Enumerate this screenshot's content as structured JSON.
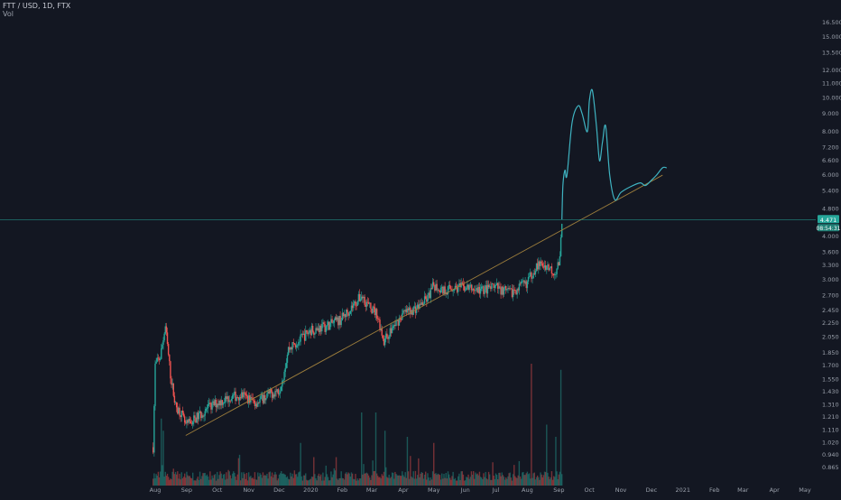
{
  "header": {
    "symbol_title": "FTT / USD, 1D, FTX",
    "volume_label": "Vol"
  },
  "colors": {
    "background": "#131722",
    "up": "#26a69a",
    "down": "#ef5350",
    "projection": "#3fb3c1",
    "trendline": "#9c7d3c",
    "price_line": "#26a69a",
    "axis_text": "#9aa0ab"
  },
  "chart_data": {
    "type": "candlestick",
    "title": "FTT / USD, 1D, FTX",
    "xlabel": "",
    "ylabel": "",
    "y_scale": "log",
    "ylim": [
      0.82,
      18.8
    ],
    "last_price": {
      "value": "4.471",
      "countdown": "08:54:31"
    },
    "y_ticks": [
      "16.500",
      "15.000",
      "13.500",
      "12.000",
      "11.000",
      "10.000",
      "9.000",
      "8.000",
      "7.200",
      "6.600",
      "6.000",
      "5.400",
      "4.800",
      "4.000",
      "3.600",
      "3.300",
      "3.000",
      "2.700",
      "2.450",
      "2.250",
      "2.050",
      "1.850",
      "1.700",
      "1.550",
      "1.430",
      "1.310",
      "1.210",
      "1.110",
      "1.020",
      "0.940",
      "0.865"
    ],
    "x_ticks": [
      {
        "date": "2019-08-01",
        "label": "Aug"
      },
      {
        "date": "2019-09-01",
        "label": "Sep"
      },
      {
        "date": "2019-10-01",
        "label": "Oct"
      },
      {
        "date": "2019-11-01",
        "label": "Nov"
      },
      {
        "date": "2019-12-01",
        "label": "Dec"
      },
      {
        "date": "2020-01-01",
        "label": "2020"
      },
      {
        "date": "2020-02-01",
        "label": "Feb"
      },
      {
        "date": "2020-03-01",
        "label": "Mar"
      },
      {
        "date": "2020-04-01",
        "label": "Apr"
      },
      {
        "date": "2020-05-01",
        "label": "May"
      },
      {
        "date": "2020-06-01",
        "label": "Jun"
      },
      {
        "date": "2020-07-01",
        "label": "Jul"
      },
      {
        "date": "2020-08-01",
        "label": "Aug"
      },
      {
        "date": "2020-09-01",
        "label": "Sep"
      },
      {
        "date": "2020-10-01",
        "label": "Oct"
      },
      {
        "date": "2020-11-01",
        "label": "Nov"
      },
      {
        "date": "2020-12-01",
        "label": "Dec"
      },
      {
        "date": "2021-01-01",
        "label": "2021"
      },
      {
        "date": "2021-02-01",
        "label": "Feb"
      },
      {
        "date": "2021-03-01",
        "label": "Mar"
      },
      {
        "date": "2021-04-01",
        "label": "Apr"
      },
      {
        "date": "2021-05-01",
        "label": "May"
      }
    ],
    "price_path": [
      [
        "2019-07-30",
        0.99
      ],
      [
        "2019-08-01",
        1.7
      ],
      [
        "2019-08-06",
        1.8
      ],
      [
        "2019-08-11",
        2.2
      ],
      [
        "2019-08-16",
        1.6
      ],
      [
        "2019-08-21",
        1.3
      ],
      [
        "2019-08-26",
        1.25
      ],
      [
        "2019-08-31",
        1.14
      ],
      [
        "2019-09-10",
        1.2
      ],
      [
        "2019-09-20",
        1.27
      ],
      [
        "2019-10-01",
        1.33
      ],
      [
        "2019-10-15",
        1.38
      ],
      [
        "2019-10-25",
        1.4
      ],
      [
        "2019-11-08",
        1.33
      ],
      [
        "2019-11-20",
        1.4
      ],
      [
        "2019-12-01",
        1.45
      ],
      [
        "2019-12-05",
        1.6
      ],
      [
        "2019-12-10",
        1.9
      ],
      [
        "2019-12-20",
        2.0
      ],
      [
        "2020-01-01",
        2.15
      ],
      [
        "2020-01-15",
        2.2
      ],
      [
        "2020-01-30",
        2.3
      ],
      [
        "2020-02-10",
        2.5
      ],
      [
        "2020-02-20",
        2.7
      ],
      [
        "2020-02-28",
        2.5
      ],
      [
        "2020-03-06",
        2.4
      ],
      [
        "2020-03-13",
        2.0
      ],
      [
        "2020-03-20",
        2.15
      ],
      [
        "2020-04-01",
        2.4
      ],
      [
        "2020-04-15",
        2.5
      ],
      [
        "2020-04-25",
        2.65
      ],
      [
        "2020-05-01",
        2.9
      ],
      [
        "2020-05-10",
        2.8
      ],
      [
        "2020-05-20",
        2.85
      ],
      [
        "2020-06-01",
        2.85
      ],
      [
        "2020-06-15",
        2.8
      ],
      [
        "2020-07-01",
        2.85
      ],
      [
        "2020-07-15",
        2.75
      ],
      [
        "2020-08-01",
        2.95
      ],
      [
        "2020-08-10",
        3.3
      ],
      [
        "2020-08-20",
        3.3
      ],
      [
        "2020-08-28",
        3.15
      ],
      [
        "2020-09-02",
        3.4
      ],
      [
        "2020-09-04",
        4.471
      ]
    ],
    "projection_path": [
      [
        "2020-09-04",
        4.471
      ],
      [
        "2020-09-05",
        5.6
      ],
      [
        "2020-09-07",
        6.2
      ],
      [
        "2020-09-09",
        6.0
      ],
      [
        "2020-09-14",
        8.5
      ],
      [
        "2020-09-20",
        9.5
      ],
      [
        "2020-09-24",
        9.0
      ],
      [
        "2020-09-29",
        8.0
      ],
      [
        "2020-10-01",
        9.8
      ],
      [
        "2020-10-04",
        10.5
      ],
      [
        "2020-10-08",
        8.3
      ],
      [
        "2020-10-11",
        6.6
      ],
      [
        "2020-10-14",
        7.5
      ],
      [
        "2020-10-17",
        8.3
      ],
      [
        "2020-10-21",
        6.0
      ],
      [
        "2020-10-26",
        5.1
      ],
      [
        "2020-11-01",
        5.35
      ],
      [
        "2020-11-10",
        5.55
      ],
      [
        "2020-11-20",
        5.7
      ],
      [
        "2020-11-25",
        5.6
      ],
      [
        "2020-12-01",
        5.8
      ],
      [
        "2020-12-06",
        6.0
      ],
      [
        "2020-12-12",
        6.3
      ],
      [
        "2020-12-16",
        6.3
      ]
    ],
    "trendline": {
      "start": [
        "2019-08-31",
        1.07
      ],
      "end": [
        "2020-12-12",
        6.0
      ]
    },
    "volume_spikes": [
      [
        "2019-08-07",
        0.55
      ],
      [
        "2019-08-09",
        0.45
      ],
      [
        "2019-12-22",
        0.35
      ],
      [
        "2020-02-20",
        0.6
      ],
      [
        "2020-03-05",
        0.6
      ],
      [
        "2020-03-14",
        0.45
      ],
      [
        "2020-04-05",
        0.4
      ],
      [
        "2020-05-01",
        0.35
      ],
      [
        "2020-08-05",
        1.0
      ],
      [
        "2020-08-20",
        0.5
      ],
      [
        "2020-08-29",
        0.4
      ],
      [
        "2020-09-03",
        0.95
      ]
    ]
  }
}
